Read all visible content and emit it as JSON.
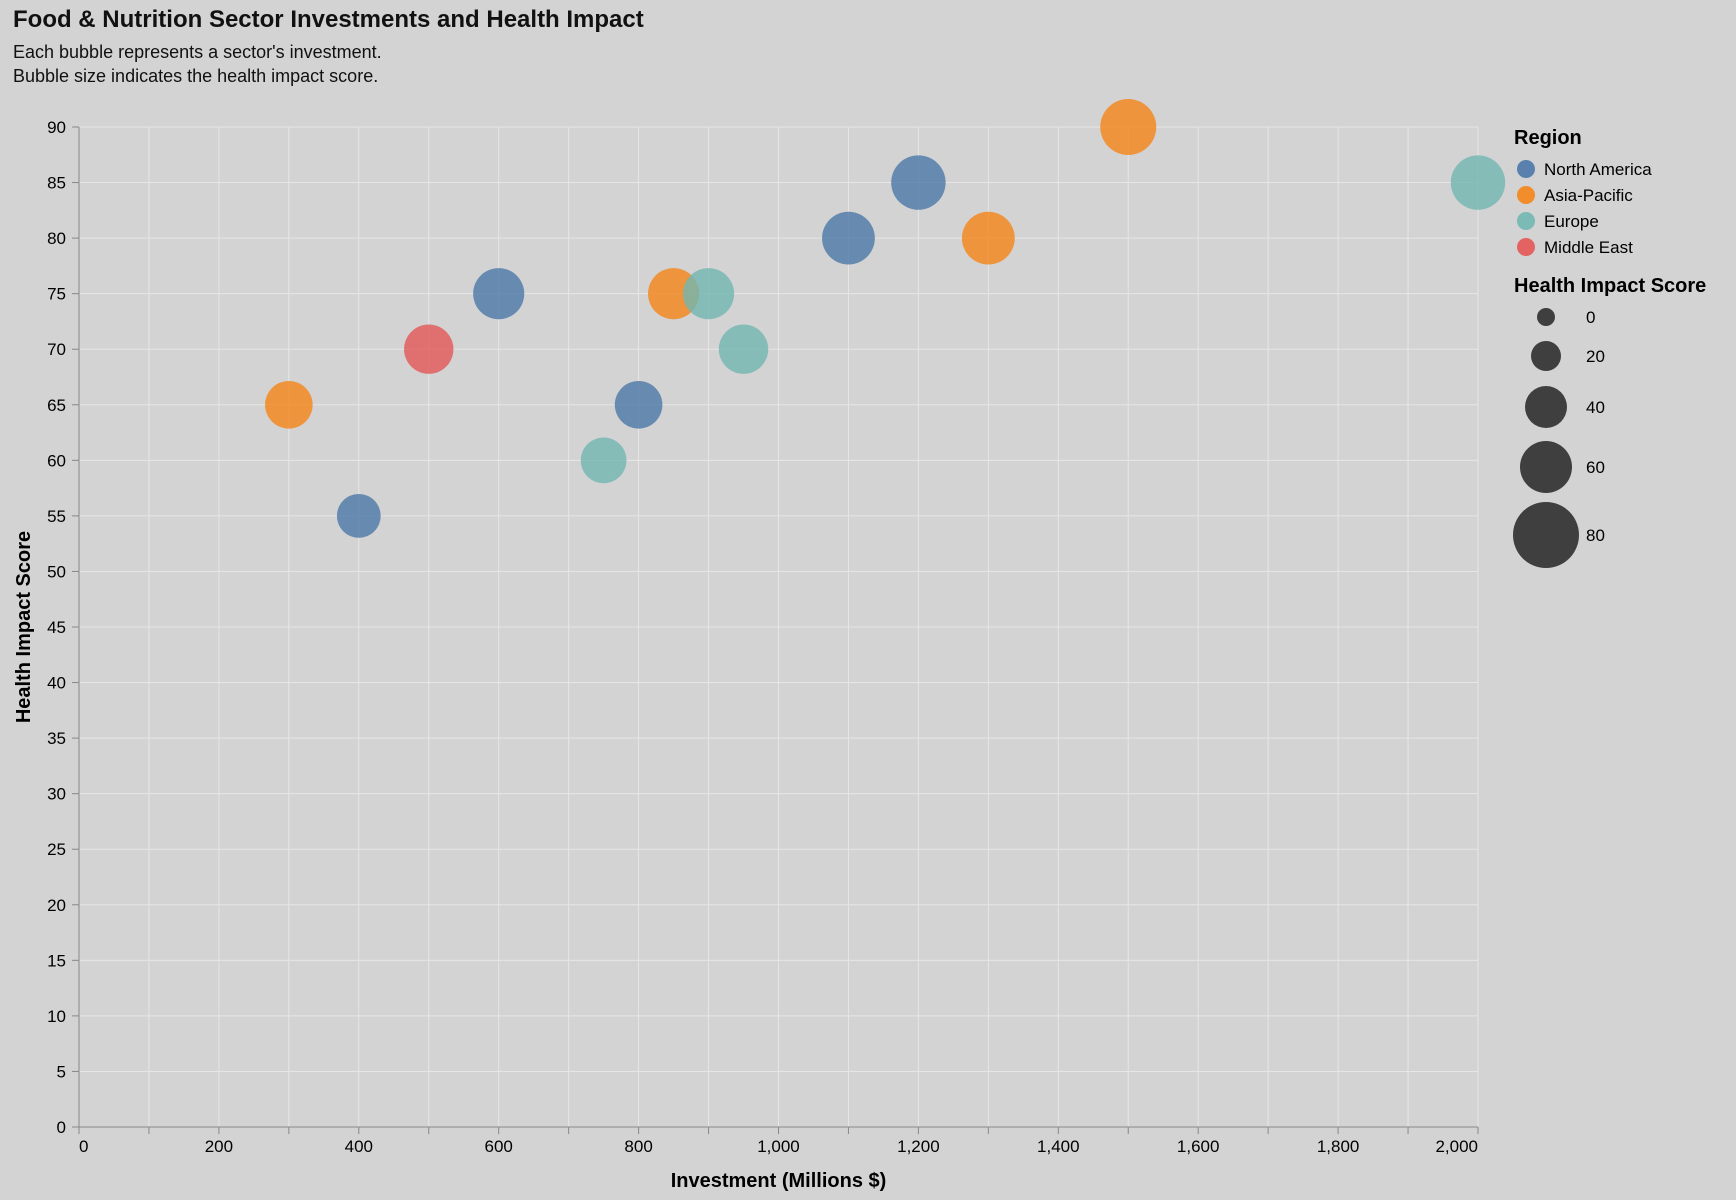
{
  "chart_data": {
    "type": "scatter",
    "title": "Food & Nutrition Sector Investments and Health Impact",
    "subtitle": [
      "Each bubble represents a sector's investment.",
      "Bubble size indicates the health impact score."
    ],
    "xlabel": "Investment (Millions $)",
    "ylabel": "Health Impact Score",
    "xlim": [
      0,
      2000
    ],
    "ylim": [
      0,
      90
    ],
    "x_ticks": [
      0,
      200,
      400,
      600,
      800,
      1000,
      1200,
      1400,
      1600,
      1800,
      2000
    ],
    "x_tick_labels": [
      "0",
      "200",
      "400",
      "600",
      "800",
      "1,000",
      "1,200",
      "1,400",
      "1,600",
      "1,800",
      "2,000"
    ],
    "y_ticks": [
      0,
      5,
      10,
      15,
      20,
      25,
      30,
      35,
      40,
      45,
      50,
      55,
      60,
      65,
      70,
      75,
      80,
      85,
      90
    ],
    "grid": true,
    "size_field": "Health Impact Score",
    "legend": {
      "placement": "right",
      "color_title": "Region",
      "size_title": "Health Impact Score",
      "size_values": [
        0,
        20,
        40,
        60,
        80
      ]
    },
    "series": [
      {
        "name": "North America",
        "color": "#4c78a8",
        "points": [
          {
            "x": 400,
            "y": 55
          },
          {
            "x": 600,
            "y": 75
          },
          {
            "x": 800,
            "y": 65
          },
          {
            "x": 1100,
            "y": 80
          },
          {
            "x": 1200,
            "y": 85
          }
        ]
      },
      {
        "name": "Asia-Pacific",
        "color": "#f58518",
        "points": [
          {
            "x": 300,
            "y": 65
          },
          {
            "x": 850,
            "y": 75
          },
          {
            "x": 1300,
            "y": 80
          },
          {
            "x": 1500,
            "y": 90
          }
        ]
      },
      {
        "name": "Europe",
        "color": "#72b7b2",
        "points": [
          {
            "x": 750,
            "y": 60
          },
          {
            "x": 900,
            "y": 75
          },
          {
            "x": 950,
            "y": 70
          },
          {
            "x": 2000,
            "y": 85
          }
        ]
      },
      {
        "name": "Middle East",
        "color": "#e45756",
        "points": [
          {
            "x": 500,
            "y": 70
          }
        ]
      }
    ]
  }
}
